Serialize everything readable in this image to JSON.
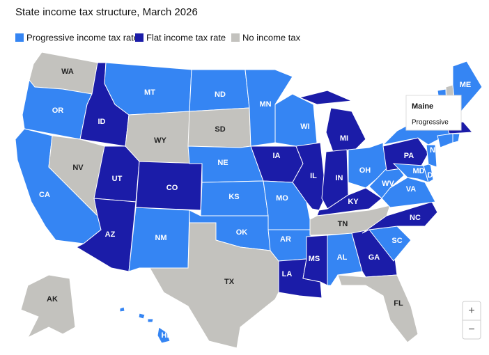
{
  "title": "State income tax structure, March 2026",
  "legend": [
    {
      "label": "Progressive income tax rate",
      "color": "#3585f3"
    },
    {
      "label": "Flat income tax rate",
      "color": "#1b1ca8"
    },
    {
      "label": "No income tax",
      "color": "#c3c2be"
    }
  ],
  "states": [
    {
      "label": "WA",
      "category": "No income tax"
    },
    {
      "label": "OR",
      "category": "Progressive income tax rate"
    },
    {
      "label": "CA",
      "category": "Progressive income tax rate"
    },
    {
      "label": "ID",
      "category": "Flat income tax rate"
    },
    {
      "label": "NV",
      "category": "No income tax"
    },
    {
      "label": "MT",
      "category": "Progressive income tax rate"
    },
    {
      "label": "WY",
      "category": "No income tax"
    },
    {
      "label": "UT",
      "category": "Flat income tax rate"
    },
    {
      "label": "AZ",
      "category": "Flat income tax rate"
    },
    {
      "label": "CO",
      "category": "Flat income tax rate"
    },
    {
      "label": "NM",
      "category": "Progressive income tax rate"
    },
    {
      "label": "ND",
      "category": "Progressive income tax rate"
    },
    {
      "label": "SD",
      "category": "No income tax"
    },
    {
      "label": "NE",
      "category": "Progressive income tax rate"
    },
    {
      "label": "KS",
      "category": "Progressive income tax rate"
    },
    {
      "label": "OK",
      "category": "Progressive income tax rate"
    },
    {
      "label": "TX",
      "category": "No income tax"
    },
    {
      "label": "MN",
      "category": "Progressive income tax rate"
    },
    {
      "label": "IA",
      "category": "Flat income tax rate"
    },
    {
      "label": "MO",
      "category": "Progressive income tax rate"
    },
    {
      "label": "AR",
      "category": "Progressive income tax rate"
    },
    {
      "label": "LA",
      "category": "Flat income tax rate"
    },
    {
      "label": "WI",
      "category": "Progressive income tax rate"
    },
    {
      "label": "IL",
      "category": "Flat income tax rate"
    },
    {
      "label": "MS",
      "category": "Flat income tax rate"
    },
    {
      "label": "MI",
      "category": "Flat income tax rate"
    },
    {
      "label": "IN",
      "category": "Flat income tax rate"
    },
    {
      "label": "KY",
      "category": "Flat income tax rate"
    },
    {
      "label": "TN",
      "category": "No income tax"
    },
    {
      "label": "AL",
      "category": "Progressive income tax rate"
    },
    {
      "label": "OH",
      "category": "Progressive income tax rate"
    },
    {
      "label": "GA",
      "category": "Flat income tax rate"
    },
    {
      "label": "FL",
      "category": "No income tax"
    },
    {
      "label": "SC",
      "category": "Progressive income tax rate"
    },
    {
      "label": "NC",
      "category": "Flat income tax rate"
    },
    {
      "label": "WV",
      "category": "Progressive income tax rate"
    },
    {
      "label": "VA",
      "category": "Progressive income tax rate"
    },
    {
      "label": "PA",
      "category": "Flat income tax rate"
    },
    {
      "label": null,
      "category": "Progressive income tax rate"
    },
    {
      "label": "MD",
      "category": "Progressive income tax rate"
    },
    {
      "label": "DE",
      "category": "Progressive income tax rate"
    },
    {
      "label": "NJ",
      "category": "Progressive income tax rate"
    },
    {
      "label": null,
      "category": "Progressive income tax rate"
    },
    {
      "label": null,
      "category": "No income tax"
    },
    {
      "label": "ME",
      "category": "Progressive income tax rate"
    },
    {
      "label": null,
      "category": "Flat income tax rate"
    },
    {
      "label": null,
      "category": "Progressive income tax rate"
    },
    {
      "label": null,
      "category": "Progressive income tax rate"
    },
    {
      "label": "AK",
      "category": "No income tax"
    },
    {
      "label": "HI",
      "category": "Progressive income tax rate"
    }
  ],
  "tooltip": {
    "title": "Maine",
    "value": "Progressive"
  },
  "zoom": [
    "+",
    "−"
  ]
}
